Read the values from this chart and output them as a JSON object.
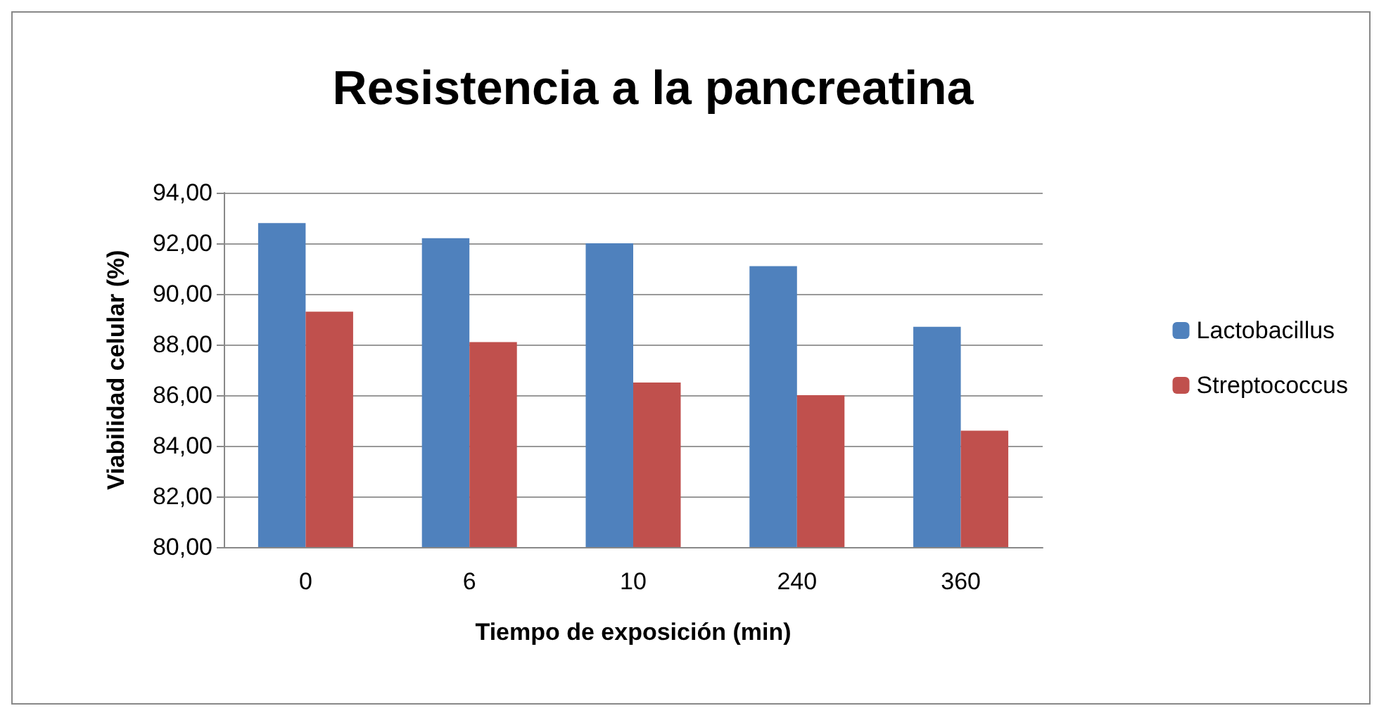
{
  "chart_data": {
    "type": "bar",
    "title": "Resistencia a la pancreatina",
    "xlabel": "Tiempo de exposición (min)",
    "ylabel": "Viabilidad celular (%)",
    "categories": [
      "0",
      "6",
      "10",
      "240",
      "360"
    ],
    "series": [
      {
        "name": "Lactobacillus",
        "color": "#4f81bd",
        "values": [
          92.8,
          92.2,
          92.0,
          91.1,
          88.7
        ]
      },
      {
        "name": "Streptococcus",
        "color": "#c0504d",
        "values": [
          89.3,
          88.1,
          86.5,
          86.0,
          84.6
        ]
      }
    ],
    "ylim": [
      80,
      94
    ],
    "yticks": [
      {
        "value": 80,
        "label": "80,00"
      },
      {
        "value": 82,
        "label": "82,00"
      },
      {
        "value": 84,
        "label": "84,00"
      },
      {
        "value": 86,
        "label": "86,00"
      },
      {
        "value": 88,
        "label": "88,00"
      },
      {
        "value": 90,
        "label": "90,00"
      },
      {
        "value": 92,
        "label": "92,00"
      },
      {
        "value": 94,
        "label": "94,00"
      }
    ],
    "grid": "y",
    "legend": "right"
  }
}
